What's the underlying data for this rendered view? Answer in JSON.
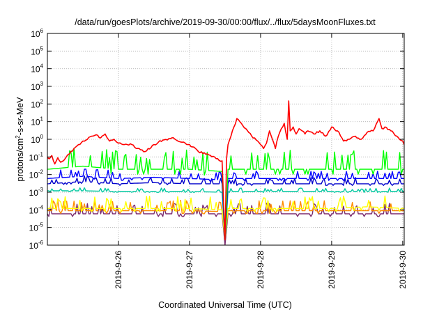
{
  "chart_data": {
    "type": "line",
    "title": "/data/run/goesPlots/archive/2019-09-30/00:00/flux/../flux/5daysMoonFluxes.txt",
    "xlabel": "Coordinated Universal Time (UTC)",
    "ylabel": "protons/cm²-s-sr-MeV",
    "ylabel_parts": {
      "pre": "protons/cm",
      "sup": "2",
      "post": "-s-sr-MeV"
    },
    "y_scale": "log",
    "ylim": [
      1e-06,
      1000000
    ],
    "y_ticks": [
      {
        "exp": "-6",
        "value": 1e-06
      },
      {
        "exp": "-5",
        "value": 1e-05
      },
      {
        "exp": "-4",
        "value": 0.0001
      },
      {
        "exp": "-3",
        "value": 0.001
      },
      {
        "exp": "-2",
        "value": 0.01
      },
      {
        "exp": "-1",
        "value": 0.1
      },
      {
        "exp": "0",
        "value": 1
      },
      {
        "exp": "1",
        "value": 10
      },
      {
        "exp": "2",
        "value": 100
      },
      {
        "exp": "3",
        "value": 1000
      },
      {
        "exp": "4",
        "value": 10000
      },
      {
        "exp": "5",
        "value": 100000
      },
      {
        "exp": "6",
        "value": 1000000
      }
    ],
    "y_tick_base": "10",
    "xlim": [
      "2019-09-25 00:00",
      "2019-09-30 00:30"
    ],
    "x_ticks": [
      "2019-9-26",
      "2019-9-27",
      "2019-9-28",
      "2019-9-29",
      "2019-9-30"
    ],
    "grid": true,
    "series": [
      {
        "color": "#ff0000",
        "x": [
          "2019-09-25 00:00",
          "2019-09-25 00:45",
          "2019-09-25 01:30",
          "2019-09-25 02:30",
          "2019-09-25 03:30",
          "2019-09-25 04:30",
          "2019-09-25 06:00",
          "2019-09-25 07:30",
          "2019-09-25 09:00",
          "2019-09-25 10:30",
          "2019-09-25 12:00",
          "2019-09-25 13:30",
          "2019-09-25 15:00",
          "2019-09-25 16:30",
          "2019-09-25 18:00",
          "2019-09-25 19:30",
          "2019-09-25 21:00",
          "2019-09-25 22:30",
          "2019-09-26 00:00",
          "2019-09-26 01:30",
          "2019-09-26 03:00",
          "2019-09-26 04:30",
          "2019-09-26 06:00",
          "2019-09-26 09:00",
          "2019-09-26 12:00",
          "2019-09-26 15:00",
          "2019-09-26 18:00",
          "2019-09-26 21:00",
          "2019-09-27 00:00",
          "2019-09-27 03:00",
          "2019-09-27 06:00",
          "2019-09-27 09:00",
          "2019-09-27 11:00",
          "2019-09-27 12:00",
          "2019-09-27 12:30",
          "2019-09-27 13:00",
          "2019-09-27 14:00",
          "2019-09-27 15:00",
          "2019-09-27 16:00",
          "2019-09-27 17:00",
          "2019-09-27 18:00",
          "2019-09-27 19:00",
          "2019-09-27 21:00",
          "2019-09-27 23:00",
          "2019-09-28 01:00",
          "2019-09-28 02:00",
          "2019-09-28 03:00",
          "2019-09-28 04:00",
          "2019-09-28 05:00",
          "2019-09-28 06:00",
          "2019-09-28 07:00",
          "2019-09-28 08:00",
          "2019-09-28 09:00",
          "2019-09-28 09:30",
          "2019-09-28 10:00",
          "2019-09-28 11:00",
          "2019-09-28 12:00",
          "2019-09-28 13:00",
          "2019-09-28 14:00",
          "2019-09-28 15:00",
          "2019-09-28 16:00",
          "2019-09-28 18:00",
          "2019-09-28 20:00",
          "2019-09-28 22:00",
          "2019-09-29 00:00",
          "2019-09-29 02:00",
          "2019-09-29 04:00",
          "2019-09-29 06:00",
          "2019-09-29 08:00",
          "2019-09-29 10:00",
          "2019-09-29 12:00",
          "2019-09-29 14:00",
          "2019-09-29 16:00",
          "2019-09-29 17:00",
          "2019-09-29 18:00",
          "2019-09-29 20:00",
          "2019-09-29 22:00",
          "2019-09-30 00:00",
          "2019-09-30 00:30"
        ],
        "y": [
          0.1,
          0.08,
          0.12,
          0.04,
          0.09,
          0.05,
          0.08,
          0.15,
          0.3,
          0.5,
          0.8,
          1.0,
          1.5,
          1.8,
          1.2,
          2.0,
          0.8,
          1.0,
          0.6,
          0.5,
          0.5,
          0.5,
          0.3,
          0.2,
          0.5,
          0.9,
          1.2,
          0.7,
          0.5,
          0.2,
          0.15,
          0.08,
          0.06,
          2e-06,
          0.08,
          0.5,
          1.5,
          5,
          15,
          10,
          6,
          4,
          1.5,
          0.8,
          0.3,
          0.6,
          3,
          1.0,
          0.3,
          1.5,
          4,
          8,
          1.0,
          150,
          3,
          5,
          2,
          4,
          3,
          2,
          3,
          2,
          3,
          1.5,
          5,
          3,
          0.8,
          1.0,
          1.5,
          1.0,
          2.5,
          3,
          15,
          4,
          5,
          3,
          1.5,
          0.8,
          0.5
        ]
      },
      {
        "color": "#00ff00",
        "x": [
          "2019-09-25 00:00",
          "2019-09-25 12:00",
          "2019-09-26 00:00",
          "2019-09-26 12:00",
          "2019-09-27 00:00",
          "2019-09-27 11:00",
          "2019-09-27 12:00",
          "2019-09-27 13:00",
          "2019-09-28 00:00",
          "2019-09-28 12:00",
          "2019-09-29 00:00",
          "2019-09-29 12:00",
          "2019-09-30 00:30"
        ],
        "y": [
          0.02,
          0.03,
          0.02,
          0.02,
          0.02,
          0.015,
          2e-06,
          0.02,
          0.02,
          0.02,
          0.02,
          0.02,
          0.02
        ]
      },
      {
        "color": "#0000ff",
        "x": [
          "2019-09-25 00:00",
          "2019-09-25 12:00",
          "2019-09-26 00:00",
          "2019-09-26 12:00",
          "2019-09-27 00:00",
          "2019-09-27 11:00",
          "2019-09-27 12:00",
          "2019-09-27 13:00",
          "2019-09-28 00:00",
          "2019-09-28 12:00",
          "2019-09-29 00:00",
          "2019-09-29 12:00",
          "2019-09-30 00:30"
        ],
        "y": [
          0.006,
          0.008,
          0.006,
          0.007,
          0.006,
          0.005,
          2e-06,
          0.006,
          0.006,
          0.006,
          0.006,
          0.006,
          0.006
        ]
      },
      {
        "color": "#0000cc",
        "x": [
          "2019-09-25 00:00",
          "2019-09-25 12:00",
          "2019-09-26 00:00",
          "2019-09-26 12:00",
          "2019-09-27 00:00",
          "2019-09-27 11:00",
          "2019-09-27 12:00",
          "2019-09-27 13:00",
          "2019-09-28 00:00",
          "2019-09-28 12:00",
          "2019-09-29 00:00",
          "2019-09-29 12:00",
          "2019-09-30 00:30"
        ],
        "y": [
          0.003,
          0.004,
          0.003,
          0.0035,
          0.003,
          0.003,
          2e-06,
          0.003,
          0.003,
          0.003,
          0.003,
          0.003,
          0.003
        ]
      },
      {
        "color": "#00c8a0",
        "x": [
          "2019-09-25 00:00",
          "2019-09-25 12:00",
          "2019-09-26 00:00",
          "2019-09-26 12:00",
          "2019-09-27 00:00",
          "2019-09-27 11:00",
          "2019-09-27 12:00",
          "2019-09-27 13:00",
          "2019-09-28 00:00",
          "2019-09-28 12:00",
          "2019-09-29 00:00",
          "2019-09-29 12:00",
          "2019-09-30 00:30"
        ],
        "y": [
          0.0012,
          0.0012,
          0.0011,
          0.0011,
          0.0011,
          0.001,
          2e-06,
          0.0011,
          0.0011,
          0.0011,
          0.0011,
          0.0011,
          0.0011
        ]
      },
      {
        "color": "#ffff00",
        "x": [
          "2019-09-25 00:00",
          "2019-09-25 12:00",
          "2019-09-26 00:00",
          "2019-09-26 12:00",
          "2019-09-27 00:00",
          "2019-09-27 11:00",
          "2019-09-27 12:00",
          "2019-09-27 13:00",
          "2019-09-28 00:00",
          "2019-09-28 12:00",
          "2019-09-29 00:00",
          "2019-09-29 12:00",
          "2019-09-30 00:30"
        ],
        "y": [
          0.00012,
          0.00012,
          0.00012,
          0.00012,
          0.00012,
          0.0001,
          2e-06,
          0.00012,
          0.00012,
          0.00012,
          0.00012,
          0.00015,
          0.00012
        ]
      },
      {
        "color": "#ff8c00",
        "x": [
          "2019-09-25 00:00",
          "2019-09-25 12:00",
          "2019-09-26 00:00",
          "2019-09-26 12:00",
          "2019-09-27 00:00",
          "2019-09-27 11:00",
          "2019-09-27 12:00",
          "2019-09-27 13:00",
          "2019-09-28 00:00",
          "2019-09-28 12:00",
          "2019-09-29 00:00",
          "2019-09-29 12:00",
          "2019-09-30 00:30"
        ],
        "y": [
          9e-05,
          9e-05,
          9e-05,
          9e-05,
          9e-05,
          8e-05,
          2e-06,
          9e-05,
          9e-05,
          9e-05,
          9e-05,
          9e-05,
          9e-05
        ]
      },
      {
        "color": "#7b2a6e",
        "x": [
          "2019-09-25 00:00",
          "2019-09-25 12:00",
          "2019-09-26 00:00",
          "2019-09-26 12:00",
          "2019-09-27 00:00",
          "2019-09-27 11:00",
          "2019-09-27 12:00",
          "2019-09-27 13:00",
          "2019-09-28 00:00",
          "2019-09-28 12:00",
          "2019-09-29 00:00",
          "2019-09-29 12:00",
          "2019-09-30 00:30"
        ],
        "y": [
          6e-05,
          6e-05,
          6e-05,
          6e-05,
          6e-05,
          6e-05,
          1e-06,
          6e-05,
          6e-05,
          6e-05,
          6e-05,
          6e-05,
          6e-05
        ]
      }
    ]
  }
}
